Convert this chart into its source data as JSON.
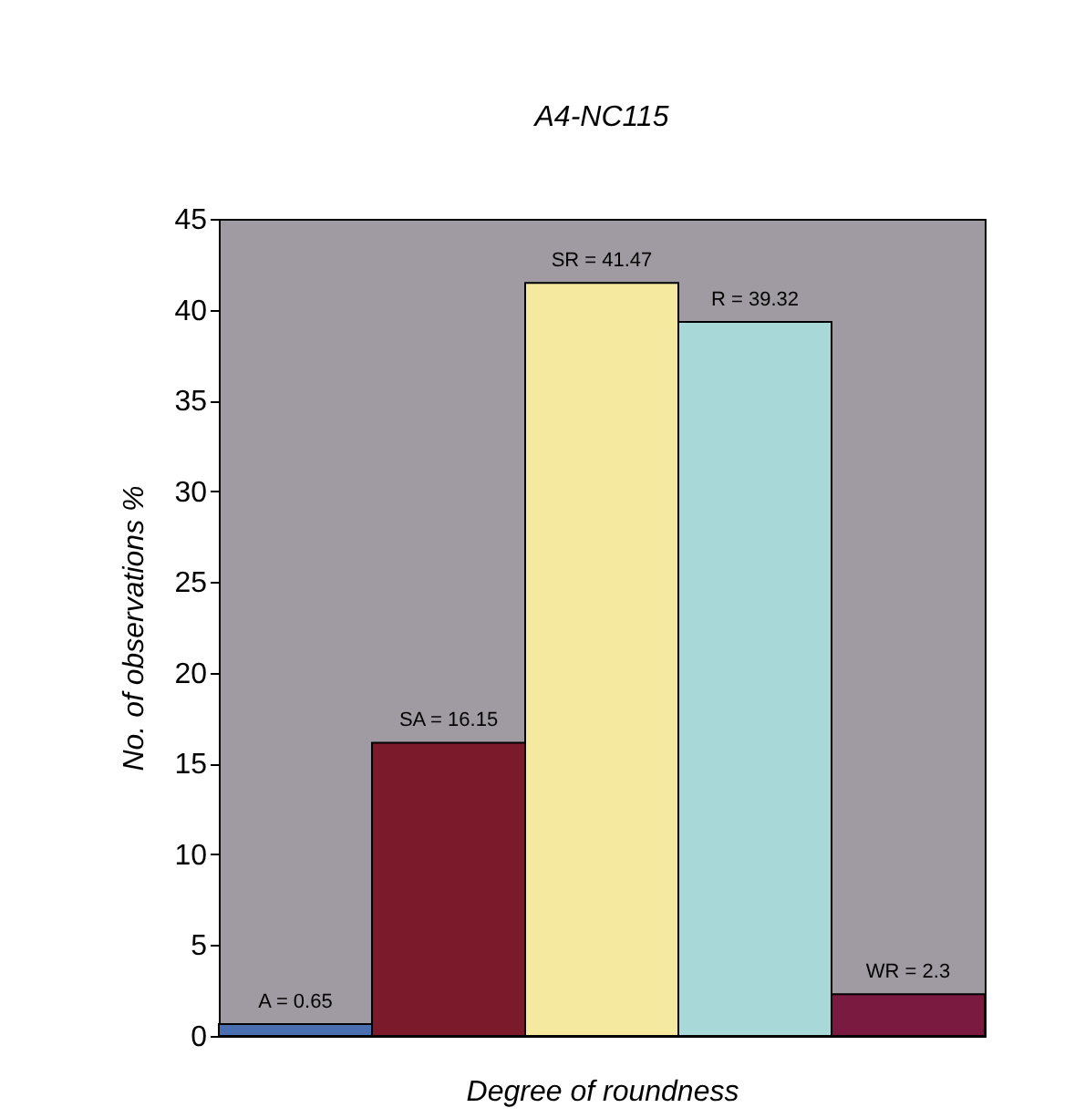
{
  "chart_data": {
    "type": "bar",
    "title": "A4-NC115",
    "xlabel": "Degree of roundness",
    "ylabel": "No. of observations %",
    "categories": [
      null,
      null,
      null,
      null,
      null
    ],
    "values": [
      0.65,
      16.15,
      41.47,
      39.32,
      2.3
    ],
    "colors": [
      "#4a6fb0",
      "#7a1a2a",
      "#f5e9a0",
      "#a8d8d8",
      "#7a1a40"
    ],
    "value_labels": [
      "A = 0.65",
      "SA = 16.15",
      "SR = 41.47",
      "R = 39.32",
      "WR = 2.3"
    ],
    "ylim": [
      0,
      45
    ],
    "yticks": [
      0,
      5,
      10,
      15,
      20,
      25,
      30,
      35,
      40,
      45
    ],
    "grid": false,
    "tick_labels": "y"
  }
}
